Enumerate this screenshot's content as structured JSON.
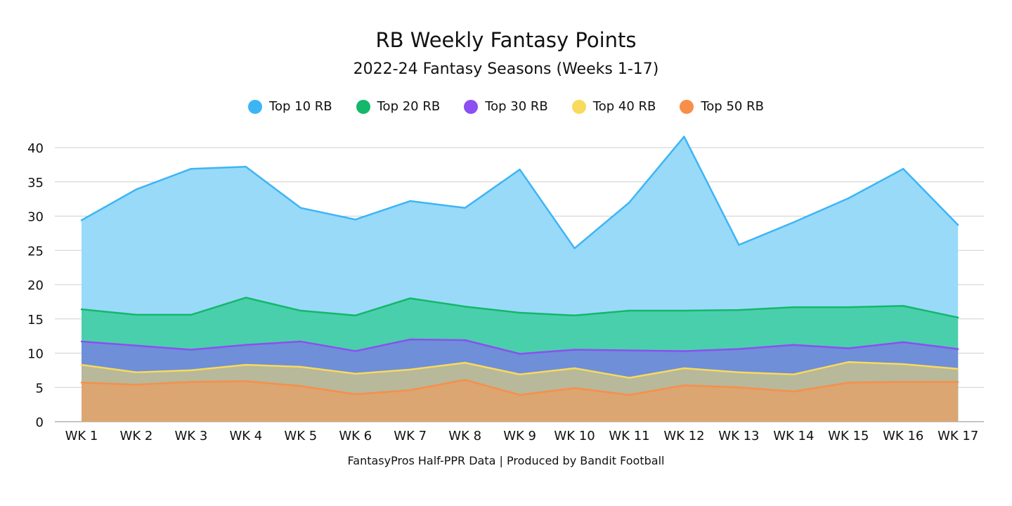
{
  "chart_data": {
    "type": "area",
    "title": "RB Weekly Fantasy Points",
    "subtitle": "2022-24 Fantasy Seasons (Weeks 1-17)",
    "footer": "FantasyPros Half-PPR Data | Produced by Bandit Football",
    "categories": [
      "WK 1",
      "WK 2",
      "WK 3",
      "WK 4",
      "WK 5",
      "WK 6",
      "WK 7",
      "WK 8",
      "WK 9",
      "WK 10",
      "WK 11",
      "WK 12",
      "WK 13",
      "WK 14",
      "WK 15",
      "WK 16",
      "WK 17"
    ],
    "ylim": [
      0,
      40
    ],
    "yticks": [
      "0",
      "5",
      "10",
      "15",
      "20",
      "25",
      "30",
      "35",
      "40"
    ],
    "grid": true,
    "legend_position": "top-center",
    "series": [
      {
        "name": "Top 10 RB",
        "color": "#3db5f5",
        "fill": "#99daf9",
        "values": [
          29.4,
          33.9,
          36.9,
          37.2,
          31.2,
          29.5,
          32.2,
          31.2,
          36.8,
          25.3,
          32.0,
          41.6,
          25.8,
          29.1,
          32.6,
          36.9,
          28.7
        ]
      },
      {
        "name": "Top 20 RB",
        "color": "#13b86a",
        "fill": "#4acfac",
        "values": [
          16.4,
          15.6,
          15.6,
          18.1,
          16.2,
          15.5,
          18.0,
          16.8,
          15.9,
          15.5,
          16.2,
          16.2,
          16.3,
          16.7,
          16.7,
          16.9,
          15.2
        ]
      },
      {
        "name": "Top 30 RB",
        "color": "#8b4ff2",
        "fill": "#6f8fd8",
        "values": [
          11.7,
          11.1,
          10.5,
          11.2,
          11.7,
          10.3,
          12.0,
          11.9,
          9.9,
          10.5,
          10.4,
          10.3,
          10.6,
          11.2,
          10.7,
          11.6,
          10.6
        ]
      },
      {
        "name": "Top 40 RB",
        "color": "#f8da5c",
        "fill": "#b8b89a",
        "values": [
          8.3,
          7.2,
          7.5,
          8.3,
          8.0,
          7.0,
          7.6,
          8.6,
          6.9,
          7.8,
          6.4,
          7.8,
          7.2,
          6.9,
          8.7,
          8.4,
          7.7
        ]
      },
      {
        "name": "Top 50 RB",
        "color": "#f78f4b",
        "fill": "#dba672",
        "values": [
          5.7,
          5.4,
          5.8,
          5.9,
          5.2,
          4.0,
          4.6,
          6.1,
          3.9,
          4.9,
          3.9,
          5.3,
          5.0,
          4.4,
          5.7,
          5.8,
          5.8
        ]
      }
    ]
  }
}
